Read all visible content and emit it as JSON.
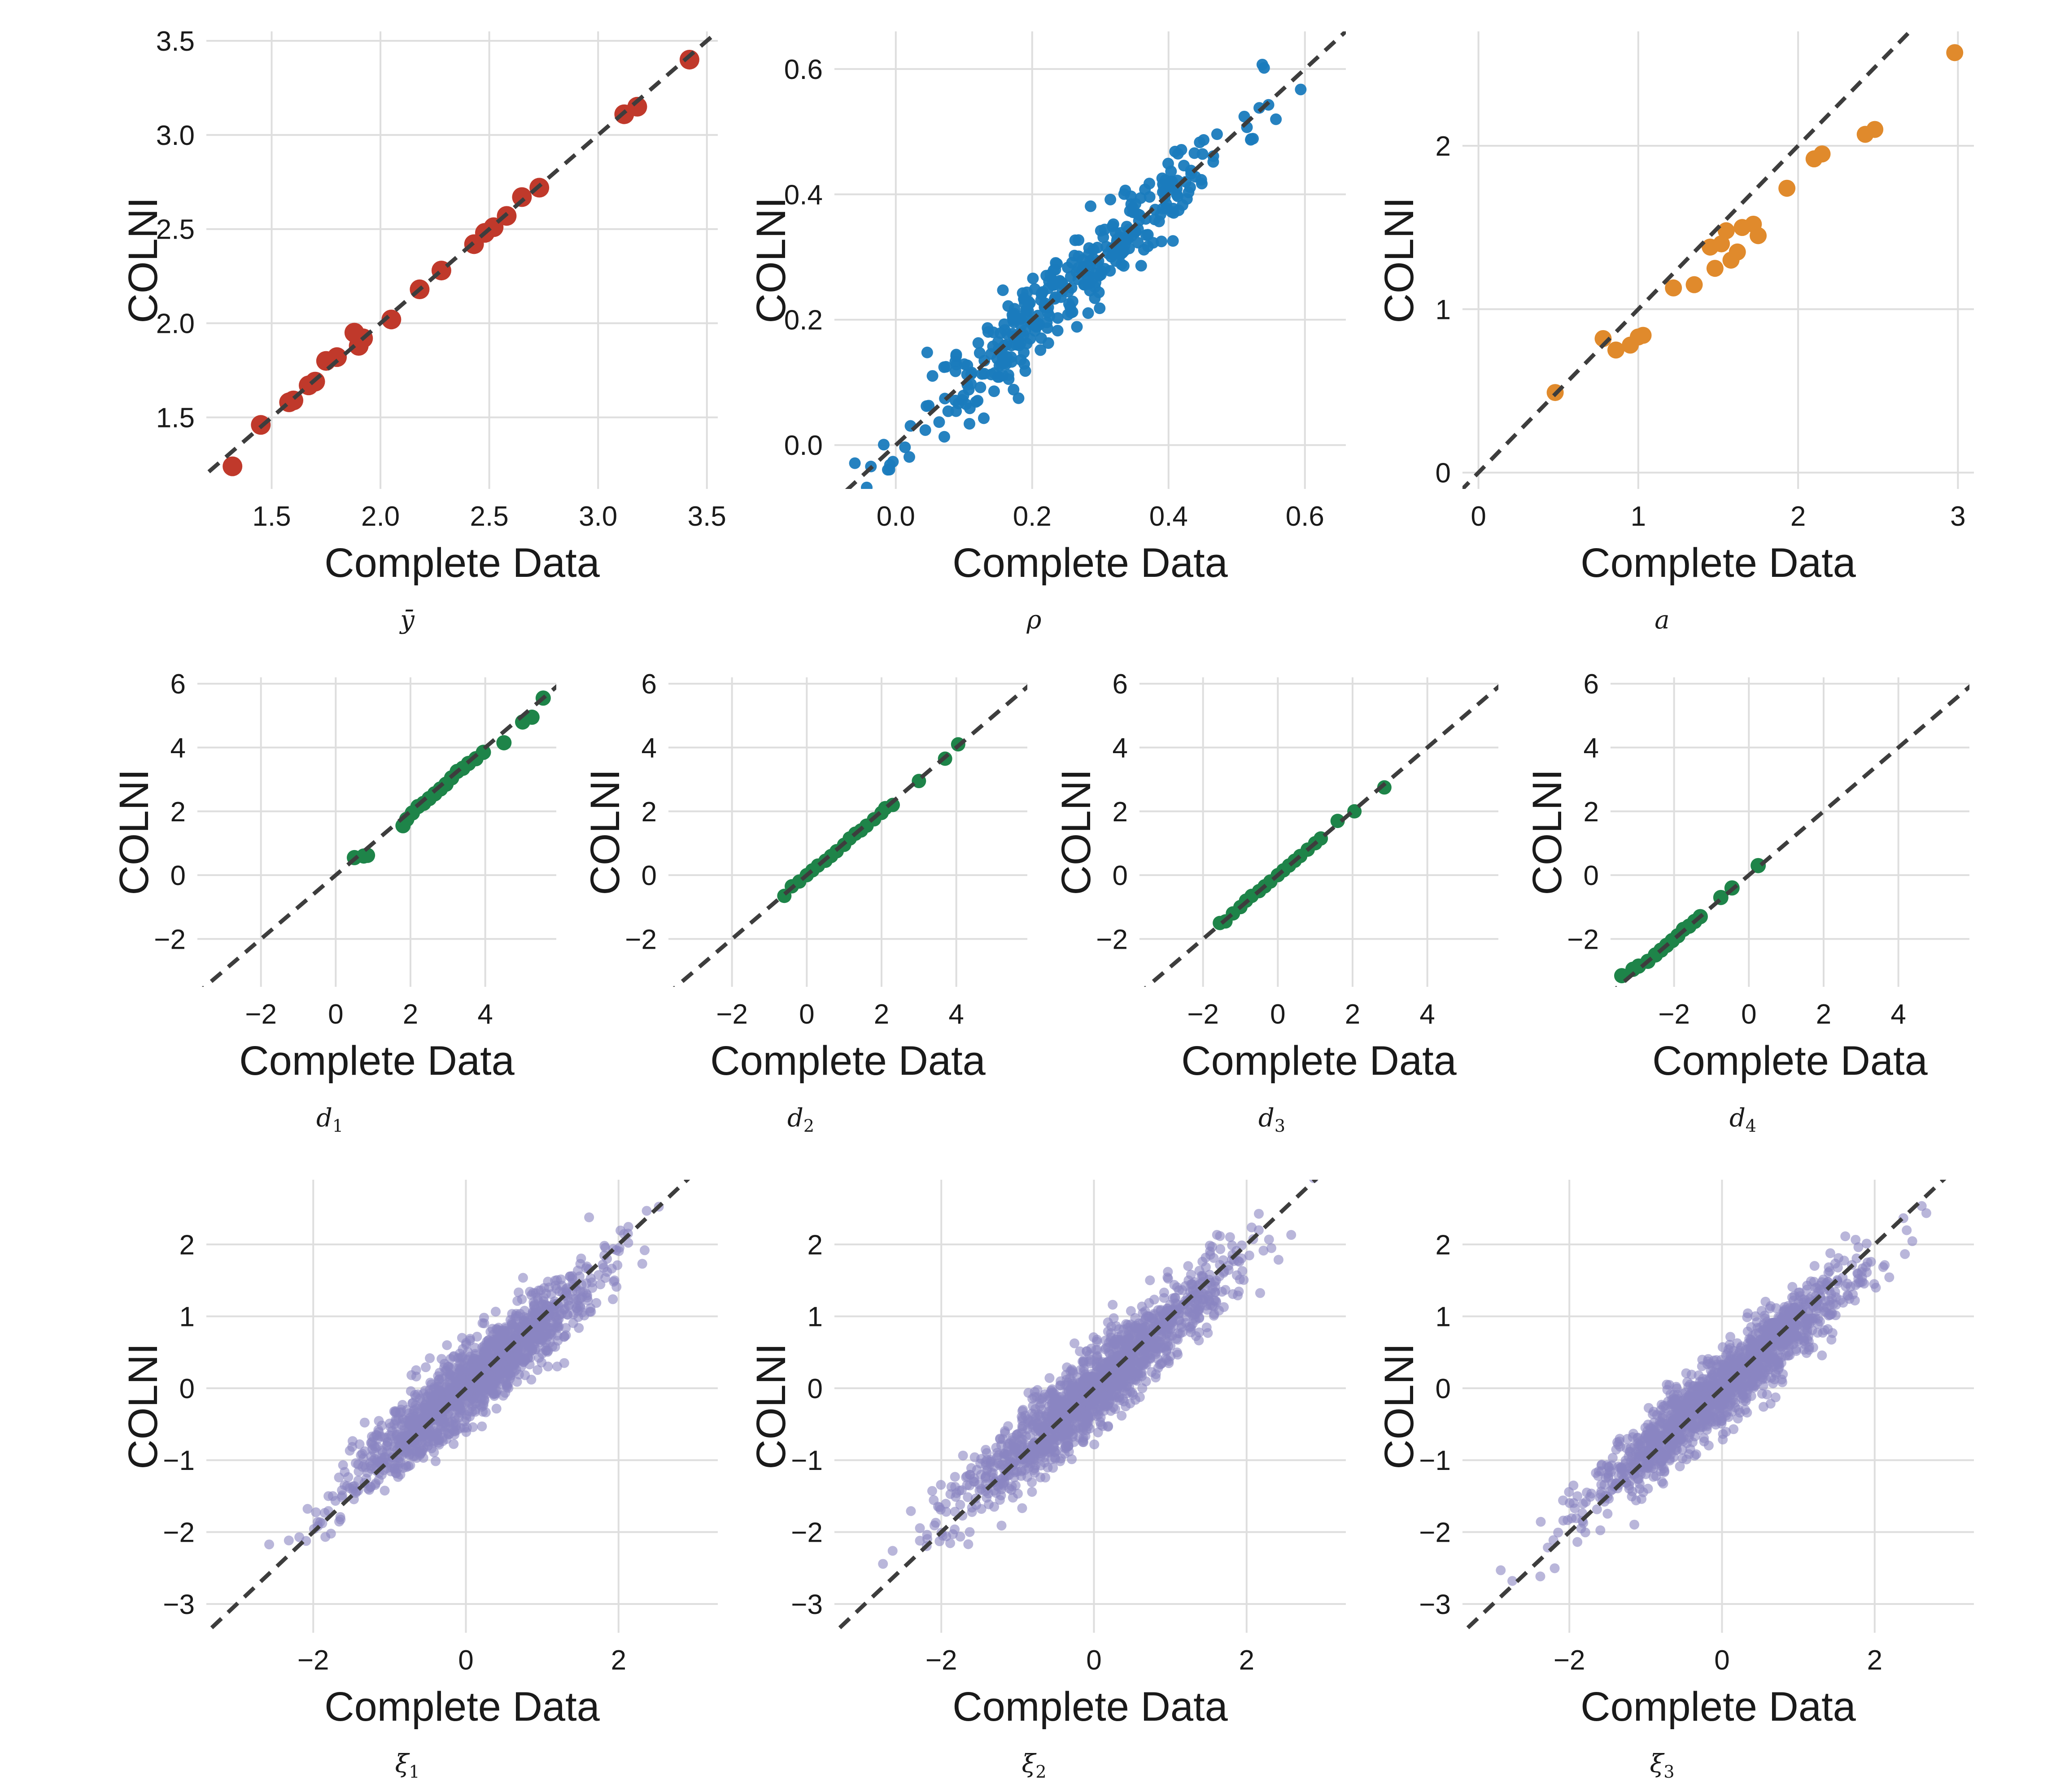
{
  "chart_data": [
    {
      "id": "ybar",
      "type": "scatter",
      "xlabel": "Complete Data",
      "ylabel": "COLNI",
      "caption": "ȳ",
      "xlim": [
        1.2,
        3.55
      ],
      "ylim": [
        1.12,
        3.55
      ],
      "xticks": [
        "1.5",
        "2.0",
        "2.5",
        "3.0",
        "3.5"
      ],
      "xtick_values": [
        1.5,
        2.0,
        2.5,
        3.0,
        3.5
      ],
      "yticks": [
        "1.5",
        "2.0",
        "2.5",
        "3.0",
        "3.5"
      ],
      "ytick_values": [
        1.5,
        2.0,
        2.5,
        3.0,
        3.5
      ],
      "identity_line": true,
      "color": "#C0392B",
      "x": [
        1.32,
        1.45,
        1.58,
        1.6,
        1.67,
        1.7,
        1.75,
        1.8,
        1.88,
        1.9,
        1.92,
        2.05,
        2.18,
        2.28,
        2.43,
        2.48,
        2.52,
        2.58,
        2.65,
        2.73,
        3.12,
        3.18,
        3.42
      ],
      "y": [
        1.24,
        1.46,
        1.58,
        1.59,
        1.67,
        1.69,
        1.8,
        1.82,
        1.95,
        1.88,
        1.92,
        2.02,
        2.18,
        2.28,
        2.42,
        2.48,
        2.51,
        2.57,
        2.67,
        2.72,
        3.11,
        3.15,
        3.4
      ],
      "point_radius": 22,
      "opacity": 1.0
    },
    {
      "id": "rho",
      "type": "scatter",
      "xlabel": "Complete Data",
      "ylabel": "COLNI",
      "caption": "ρ",
      "xlim": [
        -0.09,
        0.66
      ],
      "ylim": [
        -0.07,
        0.66
      ],
      "xticks": [
        "0.0",
        "0.2",
        "0.4",
        "0.6"
      ],
      "xtick_values": [
        0.0,
        0.2,
        0.4,
        0.6
      ],
      "yticks": [
        "0.0",
        "0.2",
        "0.4",
        "0.6"
      ],
      "ytick_values": [
        0.0,
        0.2,
        0.4,
        0.6
      ],
      "identity_line": true,
      "color": "#1A7BBD",
      "generated": {
        "n": 360,
        "x_mean": 0.26,
        "x_sd": 0.12,
        "noise_sd": 0.035,
        "x_min": -0.06,
        "x_max": 0.65,
        "seed": 11
      },
      "point_radius": 13,
      "opacity": 0.95
    },
    {
      "id": "a",
      "type": "scatter",
      "xlabel": "Complete Data",
      "ylabel": "COLNI",
      "caption": "a",
      "xlim": [
        -0.1,
        3.1
      ],
      "ylim": [
        -0.1,
        2.7
      ],
      "xticks": [
        "0",
        "1",
        "2",
        "3"
      ],
      "xtick_values": [
        0,
        1,
        2,
        3
      ],
      "yticks": [
        "0",
        "1",
        "2"
      ],
      "ytick_values": [
        0,
        1,
        2
      ],
      "identity_line": true,
      "color": "#E08A2C",
      "x": [
        0.48,
        0.78,
        0.86,
        0.95,
        1.0,
        1.03,
        1.22,
        1.35,
        1.45,
        1.48,
        1.52,
        1.55,
        1.58,
        1.62,
        1.65,
        1.72,
        1.75,
        1.93,
        2.1,
        2.15,
        2.42,
        2.48,
        2.98
      ],
      "y": [
        0.49,
        0.82,
        0.75,
        0.78,
        0.83,
        0.84,
        1.13,
        1.15,
        1.38,
        1.25,
        1.4,
        1.48,
        1.3,
        1.35,
        1.5,
        1.52,
        1.45,
        1.74,
        1.92,
        1.95,
        2.07,
        2.1,
        2.57
      ],
      "point_radius": 19,
      "opacity": 1.0
    },
    {
      "id": "d1",
      "type": "scatter",
      "xlabel": "Complete Data",
      "ylabel": "COLNI",
      "caption_base": "d",
      "caption_sub": "1",
      "xlim": [
        -3.7,
        5.9
      ],
      "ylim": [
        -3.5,
        6.2
      ],
      "xticks": [
        "−2",
        "0",
        "2",
        "4"
      ],
      "xtick_values": [
        -2,
        0,
        2,
        4
      ],
      "yticks": [
        "−2",
        "0",
        "2",
        "4",
        "6"
      ],
      "ytick_values": [
        -2,
        0,
        2,
        4,
        6
      ],
      "identity_line": true,
      "color": "#1E8449",
      "x": [
        0.5,
        0.75,
        0.85,
        1.8,
        1.9,
        2.05,
        2.2,
        2.35,
        2.5,
        2.65,
        2.8,
        2.95,
        3.1,
        3.25,
        3.4,
        3.55,
        3.75,
        3.95,
        4.5,
        5.0,
        5.25,
        5.55
      ],
      "y": [
        0.55,
        0.6,
        0.62,
        1.55,
        1.75,
        1.95,
        2.15,
        2.25,
        2.4,
        2.55,
        2.7,
        2.85,
        3.05,
        3.25,
        3.35,
        3.5,
        3.65,
        3.85,
        4.15,
        4.8,
        4.95,
        5.55
      ],
      "point_radius": 17,
      "opacity": 1.0
    },
    {
      "id": "d2",
      "type": "scatter",
      "xlabel": "Complete Data",
      "ylabel": "COLNI",
      "caption_base": "d",
      "caption_sub": "2",
      "xlim": [
        -3.7,
        5.9
      ],
      "ylim": [
        -3.5,
        6.2
      ],
      "xticks": [
        "−2",
        "0",
        "2",
        "4"
      ],
      "xtick_values": [
        -2,
        0,
        2,
        4
      ],
      "yticks": [
        "−2",
        "0",
        "2",
        "4",
        "6"
      ],
      "ytick_values": [
        -2,
        0,
        2,
        4,
        6
      ],
      "identity_line": true,
      "color": "#1E8449",
      "x": [
        -0.6,
        -0.4,
        -0.2,
        0.0,
        0.15,
        0.3,
        0.5,
        0.65,
        0.8,
        1.0,
        1.15,
        1.3,
        1.45,
        1.6,
        1.8,
        2.0,
        2.1,
        2.3,
        3.0,
        3.7,
        4.05
      ],
      "y": [
        -0.65,
        -0.35,
        -0.2,
        0.0,
        0.15,
        0.3,
        0.45,
        0.6,
        0.75,
        0.95,
        1.15,
        1.3,
        1.4,
        1.55,
        1.75,
        1.95,
        2.1,
        2.2,
        2.95,
        3.65,
        4.1
      ],
      "point_radius": 16,
      "opacity": 1.0
    },
    {
      "id": "d3",
      "type": "scatter",
      "xlabel": "Complete Data",
      "ylabel": "COLNI",
      "caption_base": "d",
      "caption_sub": "3",
      "xlim": [
        -3.7,
        5.9
      ],
      "ylim": [
        -3.5,
        6.2
      ],
      "xticks": [
        "−2",
        "0",
        "2",
        "4"
      ],
      "xtick_values": [
        -2,
        0,
        2,
        4
      ],
      "yticks": [
        "−2",
        "0",
        "2",
        "4",
        "6"
      ],
      "ytick_values": [
        -2,
        0,
        2,
        4,
        6
      ],
      "identity_line": true,
      "color": "#1E8449",
      "x": [
        -1.55,
        -1.4,
        -1.2,
        -1.0,
        -0.85,
        -0.7,
        -0.5,
        -0.35,
        -0.2,
        0.0,
        0.15,
        0.3,
        0.45,
        0.6,
        0.8,
        1.0,
        1.15,
        1.6,
        2.05,
        2.85
      ],
      "y": [
        -1.5,
        -1.45,
        -1.2,
        -1.0,
        -0.8,
        -0.65,
        -0.5,
        -0.35,
        -0.2,
        0.0,
        0.15,
        0.3,
        0.45,
        0.6,
        0.8,
        1.0,
        1.15,
        1.7,
        2.0,
        2.75
      ],
      "point_radius": 16,
      "opacity": 1.0
    },
    {
      "id": "d4",
      "type": "scatter",
      "xlabel": "Complete Data",
      "ylabel": "COLNI",
      "caption_base": "d",
      "caption_sub": "4",
      "xlim": [
        -3.7,
        5.9
      ],
      "ylim": [
        -3.5,
        6.2
      ],
      "xticks": [
        "−2",
        "0",
        "2",
        "4"
      ],
      "xtick_values": [
        -2,
        0,
        2,
        4
      ],
      "yticks": [
        "−2",
        "0",
        "2",
        "4",
        "6"
      ],
      "ytick_values": [
        -2,
        0,
        2,
        4,
        6
      ],
      "identity_line": true,
      "color": "#1E8449",
      "x": [
        -3.4,
        -3.1,
        -2.95,
        -2.7,
        -2.5,
        -2.35,
        -2.2,
        -2.05,
        -1.9,
        -1.75,
        -1.6,
        -1.45,
        -1.3,
        -0.75,
        -0.45,
        0.25
      ],
      "y": [
        -3.15,
        -2.95,
        -2.85,
        -2.7,
        -2.5,
        -2.35,
        -2.2,
        -2.05,
        -1.9,
        -1.7,
        -1.6,
        -1.45,
        -1.3,
        -0.7,
        -0.4,
        0.3
      ],
      "point_radius": 17,
      "opacity": 1.0
    },
    {
      "id": "xi1",
      "type": "scatter",
      "xlabel": "Complete Data",
      "ylabel": "COLNI",
      "caption_base": "ξ",
      "caption_sub": "1",
      "xlim": [
        -3.4,
        3.3
      ],
      "ylim": [
        -3.4,
        2.9
      ],
      "xticks": [
        "−2",
        "0",
        "2"
      ],
      "xtick_values": [
        -2,
        0,
        2
      ],
      "yticks": [
        "−3",
        "−2",
        "−1",
        "0",
        "1",
        "2"
      ],
      "ytick_values": [
        -3,
        -2,
        -1,
        0,
        1,
        2
      ],
      "identity_line": true,
      "color": "#8B86C2",
      "generated": {
        "n": 1500,
        "x_mean": 0.15,
        "x_sd": 0.8,
        "slope": 0.88,
        "noise_sd": 0.26,
        "x_min": -2.8,
        "x_max": 2.9,
        "seed": 21
      },
      "point_radius": 11,
      "opacity": 0.6
    },
    {
      "id": "xi2",
      "type": "scatter",
      "xlabel": "Complete Data",
      "ylabel": "COLNI",
      "caption_base": "ξ",
      "caption_sub": "2",
      "xlim": [
        -3.4,
        3.3
      ],
      "ylim": [
        -3.4,
        2.9
      ],
      "xticks": [
        "−2",
        "0",
        "2"
      ],
      "xtick_values": [
        -2,
        0,
        2
      ],
      "yticks": [
        "−3",
        "−2",
        "−1",
        "0",
        "1",
        "2"
      ],
      "ytick_values": [
        -3,
        -2,
        -1,
        0,
        1,
        2
      ],
      "identity_line": true,
      "color": "#8B86C2",
      "generated": {
        "n": 1500,
        "x_mean": 0.0,
        "x_sd": 0.85,
        "slope": 0.9,
        "noise_sd": 0.28,
        "x_min": -3.1,
        "x_max": 3.0,
        "seed": 37
      },
      "point_radius": 11,
      "opacity": 0.6
    },
    {
      "id": "xi3",
      "type": "scatter",
      "xlabel": "Complete Data",
      "ylabel": "COLNI",
      "caption_base": "ξ",
      "caption_sub": "3",
      "xlim": [
        -3.4,
        3.3
      ],
      "ylim": [
        -3.4,
        2.9
      ],
      "xticks": [
        "−2",
        "0",
        "2"
      ],
      "xtick_values": [
        -2,
        0,
        2
      ],
      "yticks": [
        "−3",
        "−2",
        "−1",
        "0",
        "1",
        "2"
      ],
      "ytick_values": [
        -3,
        -2,
        -1,
        0,
        1,
        2
      ],
      "identity_line": true,
      "color": "#8B86C2",
      "generated": {
        "n": 1500,
        "x_mean": 0.05,
        "x_sd": 0.85,
        "slope": 0.9,
        "noise_sd": 0.25,
        "x_min": -2.9,
        "x_max": 3.0,
        "seed": 53
      },
      "point_radius": 11,
      "opacity": 0.6
    }
  ]
}
